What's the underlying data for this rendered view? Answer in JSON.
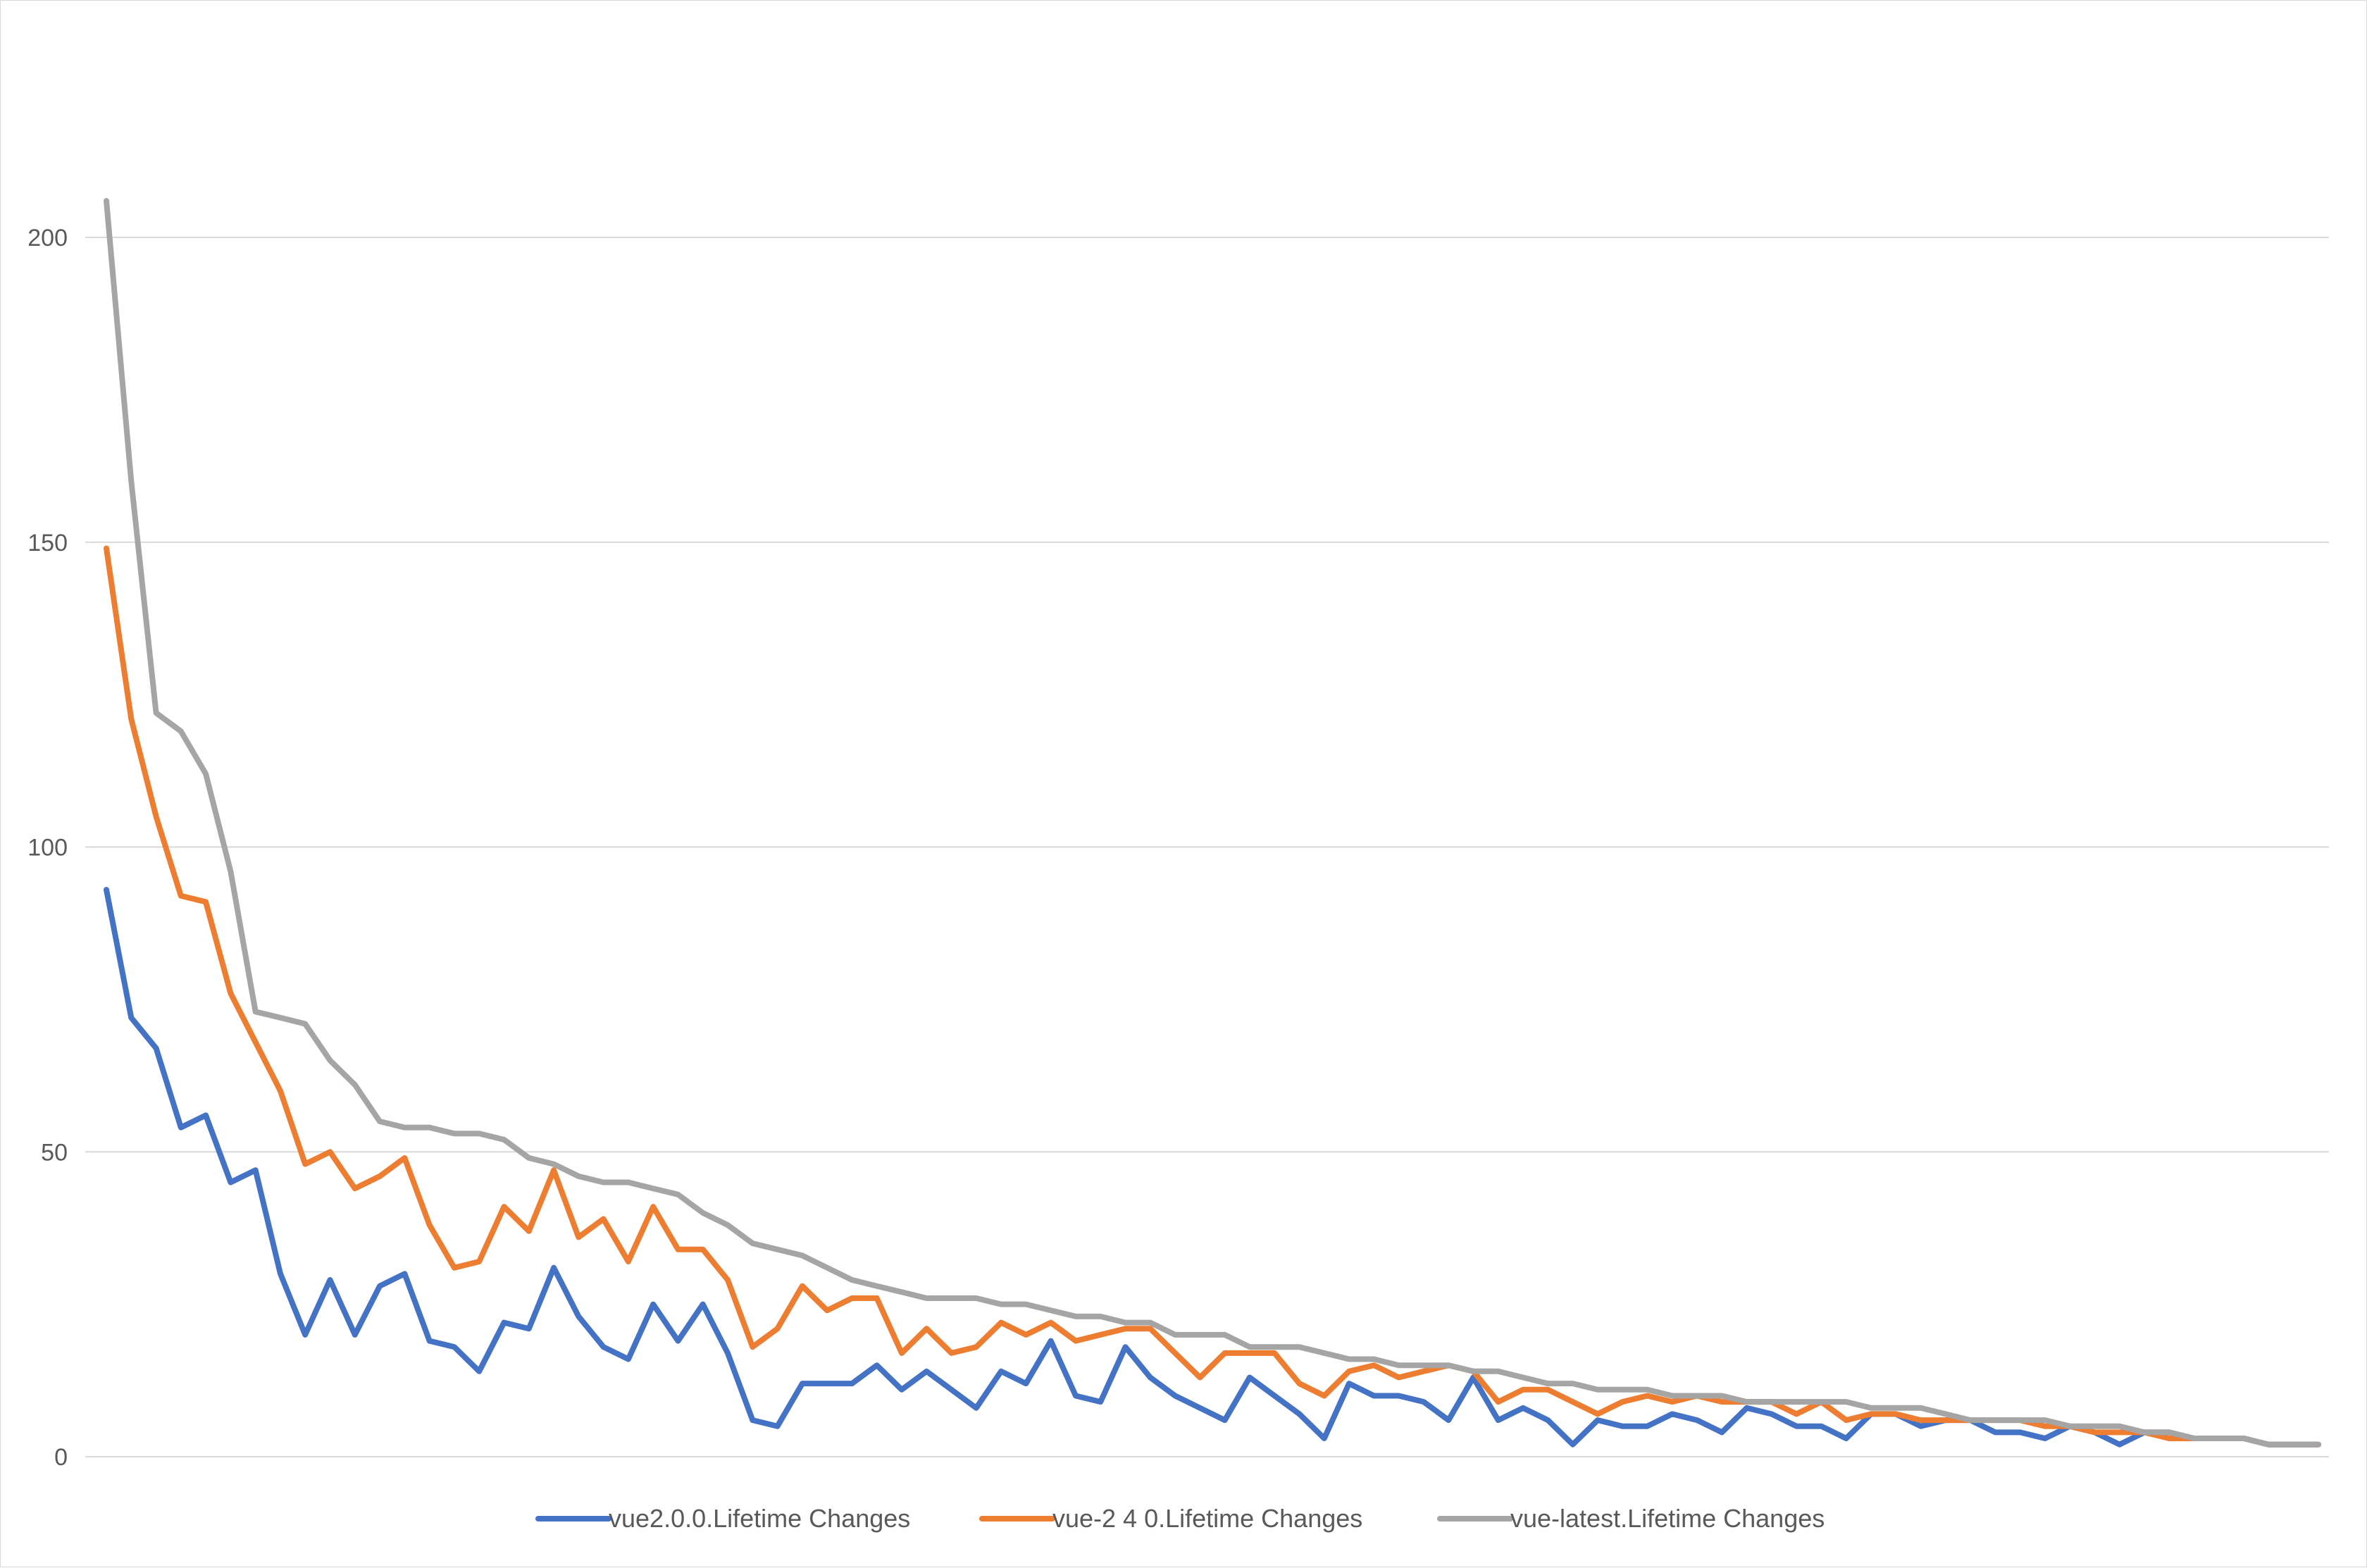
{
  "chart_data": {
    "type": "line",
    "title": "",
    "xlabel": "",
    "ylabel": "",
    "ylim": [
      0,
      230
    ],
    "yticks": [
      0,
      50,
      100,
      150,
      200
    ],
    "grid": true,
    "legend_position": "bottom",
    "series": [
      {
        "name": "vue2.0.0.Lifetime Changes",
        "color": "#4472c4",
        "values": [
          93,
          72,
          67,
          54,
          56,
          45,
          47,
          30,
          20,
          29,
          20,
          28,
          30,
          19,
          18,
          14,
          22,
          21,
          31,
          23,
          18,
          16,
          25,
          19,
          25,
          17,
          6,
          5,
          12,
          12,
          12,
          15,
          11,
          14,
          11,
          8,
          14,
          12,
          19,
          10,
          9,
          18,
          13,
          10,
          8,
          6,
          13,
          10,
          7,
          3,
          12,
          10,
          10,
          9,
          6,
          13,
          6,
          8,
          6,
          2,
          6,
          5,
          5,
          7,
          6,
          4,
          8,
          7,
          5,
          5,
          3,
          7,
          7,
          5,
          6,
          6,
          4,
          4,
          3,
          5,
          4,
          2,
          4,
          4,
          3,
          3,
          3,
          2,
          2,
          2
        ]
      },
      {
        "name": "vue-2 4 0.Lifetime Changes",
        "color": "#ed7d31",
        "values": [
          149,
          121,
          105,
          92,
          91,
          76,
          68,
          60,
          48,
          50,
          44,
          46,
          49,
          38,
          31,
          32,
          41,
          37,
          47,
          36,
          39,
          32,
          41,
          34,
          34,
          29,
          18,
          21,
          28,
          24,
          26,
          26,
          17,
          21,
          17,
          18,
          22,
          20,
          22,
          19,
          20,
          21,
          21,
          17,
          13,
          17,
          17,
          17,
          12,
          10,
          14,
          15,
          13,
          14,
          15,
          14,
          9,
          11,
          11,
          9,
          7,
          9,
          10,
          9,
          10,
          9,
          9,
          9,
          7,
          9,
          6,
          7,
          7,
          6,
          6,
          6,
          6,
          6,
          5,
          5,
          4,
          4,
          4,
          3,
          3,
          3,
          3,
          2,
          2,
          2
        ]
      },
      {
        "name": "vue-latest.Lifetime Changes",
        "color": "#a5a5a5",
        "values": [
          206,
          160,
          122,
          119,
          112,
          96,
          73,
          72,
          71,
          65,
          61,
          55,
          54,
          54,
          53,
          53,
          52,
          49,
          48,
          46,
          45,
          45,
          44,
          43,
          40,
          38,
          35,
          34,
          33,
          31,
          29,
          28,
          27,
          26,
          26,
          26,
          25,
          25,
          24,
          23,
          23,
          22,
          22,
          20,
          20,
          20,
          18,
          18,
          18,
          17,
          16,
          16,
          15,
          15,
          15,
          14,
          14,
          13,
          12,
          12,
          11,
          11,
          11,
          10,
          10,
          10,
          9,
          9,
          9,
          9,
          9,
          8,
          8,
          8,
          7,
          6,
          6,
          6,
          6,
          5,
          5,
          5,
          4,
          4,
          3,
          3,
          3,
          2,
          2,
          2
        ]
      }
    ]
  }
}
